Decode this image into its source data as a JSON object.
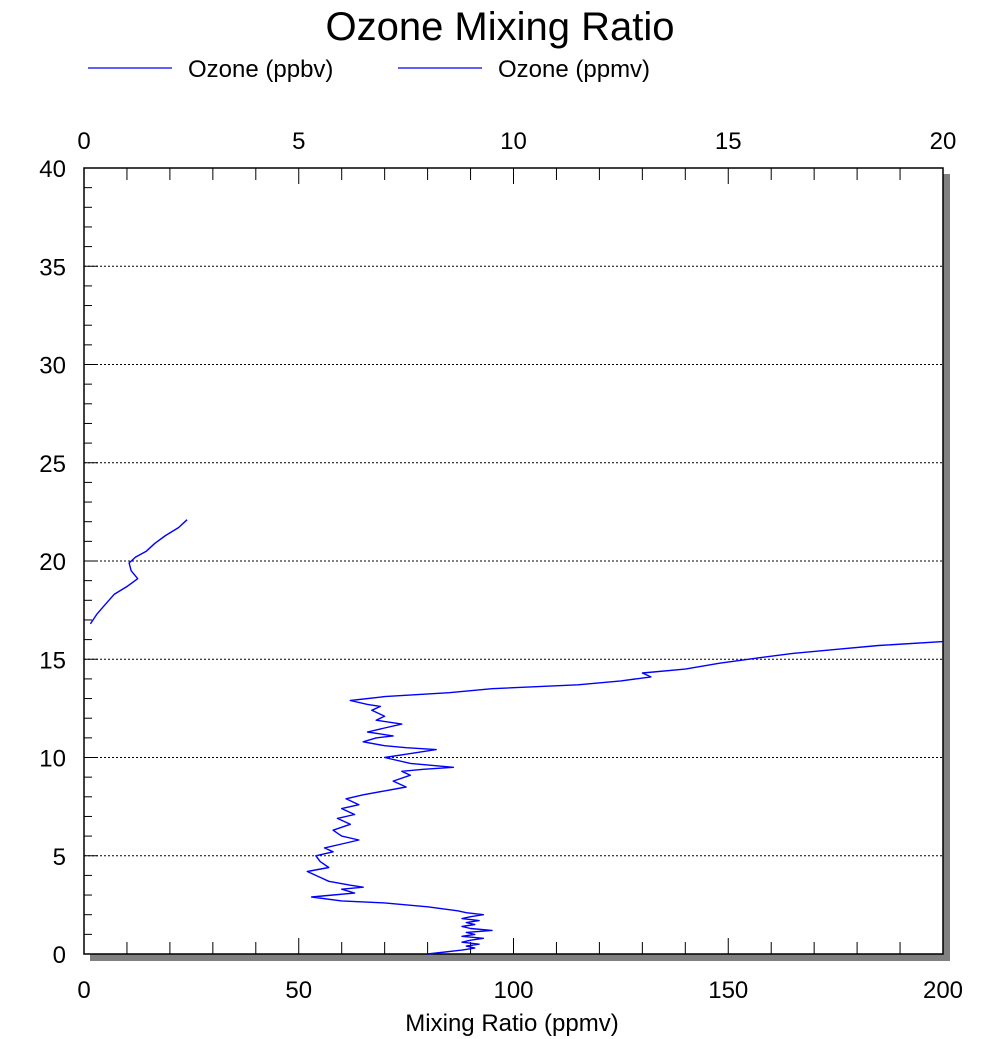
{
  "chart_data": {
    "type": "line",
    "title": "Ozone Mixing Ratio",
    "xlabel": "Mixing Ratio (ppmv)",
    "ylabel": "",
    "x2label": "",
    "xlim": [
      0,
      200
    ],
    "x2lim": [
      0,
      20
    ],
    "ylim": [
      0,
      40
    ],
    "x_ticks": [
      "0",
      "50",
      "100",
      "150",
      "200"
    ],
    "x2_ticks": [
      "0",
      "5",
      "10",
      "15",
      "20"
    ],
    "y_ticks": [
      "0",
      "5",
      "10",
      "15",
      "20",
      "25",
      "30",
      "35",
      "40"
    ],
    "grid": "horizontal dotted",
    "legend_placement": "top-left",
    "series": [
      {
        "name": "Ozone (ppbv)",
        "axis": "bottom",
        "color": "#0000ff",
        "points": [
          [
            80,
            0.0
          ],
          [
            88,
            0.2
          ],
          [
            91,
            0.3
          ],
          [
            89,
            0.4
          ],
          [
            92,
            0.5
          ],
          [
            88,
            0.6
          ],
          [
            90,
            0.7
          ],
          [
            93,
            0.8
          ],
          [
            88,
            0.9
          ],
          [
            91,
            1.0
          ],
          [
            89,
            1.1
          ],
          [
            95,
            1.2
          ],
          [
            90,
            1.3
          ],
          [
            88,
            1.4
          ],
          [
            91,
            1.5
          ],
          [
            89,
            1.6
          ],
          [
            92,
            1.7
          ],
          [
            88,
            1.8
          ],
          [
            90,
            1.9
          ],
          [
            93,
            2.0
          ],
          [
            89,
            2.1
          ],
          [
            87,
            2.2
          ],
          [
            80,
            2.4
          ],
          [
            70,
            2.6
          ],
          [
            60,
            2.7
          ],
          [
            53,
            2.9
          ],
          [
            58,
            3.0
          ],
          [
            63,
            3.1
          ],
          [
            60,
            3.3
          ],
          [
            65,
            3.4
          ],
          [
            62,
            3.5
          ],
          [
            57,
            3.7
          ],
          [
            55,
            3.9
          ],
          [
            52,
            4.2
          ],
          [
            57,
            4.4
          ],
          [
            55,
            4.7
          ],
          [
            54,
            5.0
          ],
          [
            58,
            5.2
          ],
          [
            56,
            5.4
          ],
          [
            60,
            5.6
          ],
          [
            64,
            5.8
          ],
          [
            60,
            6.0
          ],
          [
            58,
            6.3
          ],
          [
            62,
            6.6
          ],
          [
            59,
            6.9
          ],
          [
            63,
            7.1
          ],
          [
            60,
            7.4
          ],
          [
            64,
            7.6
          ],
          [
            61,
            7.9
          ],
          [
            65,
            8.1
          ],
          [
            70,
            8.3
          ],
          [
            75,
            8.5
          ],
          [
            72,
            8.8
          ],
          [
            76,
            9.1
          ],
          [
            74,
            9.3
          ],
          [
            79,
            9.4
          ],
          [
            86,
            9.5
          ],
          [
            76,
            9.7
          ],
          [
            70,
            10.0
          ],
          [
            76,
            10.2
          ],
          [
            82,
            10.4
          ],
          [
            75,
            10.5
          ],
          [
            70,
            10.6
          ],
          [
            65,
            10.8
          ],
          [
            68,
            11.0
          ],
          [
            72,
            11.1
          ],
          [
            66,
            11.3
          ],
          [
            70,
            11.5
          ],
          [
            74,
            11.7
          ],
          [
            68,
            11.9
          ],
          [
            70,
            12.1
          ],
          [
            67,
            12.4
          ],
          [
            69,
            12.6
          ],
          [
            66,
            12.7
          ],
          [
            62,
            12.9
          ],
          [
            70,
            13.1
          ],
          [
            85,
            13.3
          ],
          [
            95,
            13.5
          ],
          [
            115,
            13.7
          ],
          [
            125,
            13.9
          ],
          [
            132,
            14.1
          ],
          [
            130,
            14.3
          ],
          [
            140,
            14.5
          ],
          [
            148,
            14.8
          ],
          [
            158,
            15.1
          ],
          [
            165,
            15.3
          ],
          [
            175,
            15.5
          ],
          [
            185,
            15.7
          ],
          [
            200,
            15.9
          ]
        ]
      },
      {
        "name": "Ozone (ppmv)",
        "axis": "top",
        "color": "#0000ff",
        "points": [
          [
            0.15,
            16.8
          ],
          [
            0.3,
            17.3
          ],
          [
            0.5,
            17.8
          ],
          [
            0.7,
            18.3
          ],
          [
            1.0,
            18.7
          ],
          [
            1.25,
            19.1
          ],
          [
            1.1,
            19.5
          ],
          [
            1.05,
            19.9
          ],
          [
            1.2,
            20.2
          ],
          [
            1.45,
            20.5
          ],
          [
            1.65,
            20.9
          ],
          [
            1.9,
            21.3
          ],
          [
            2.2,
            21.7
          ],
          [
            2.4,
            22.1
          ]
        ]
      }
    ]
  }
}
